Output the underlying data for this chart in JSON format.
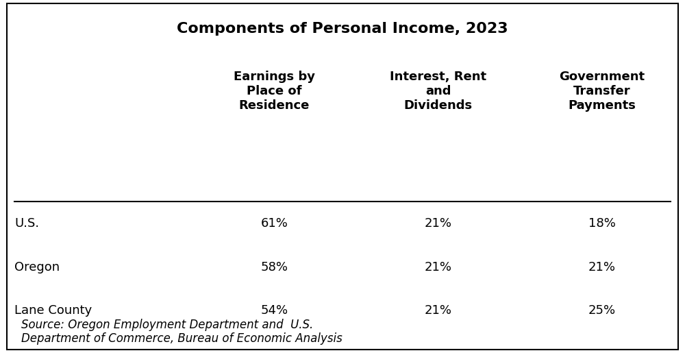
{
  "title": "Components of Personal Income, 2023",
  "col_headers": [
    "Earnings by\nPlace of\nResidence",
    "Interest, Rent\nand\nDividends",
    "Government\nTransfer\nPayments"
  ],
  "row_labels": [
    "U.S.",
    "Oregon",
    "Lane County"
  ],
  "table_data": [
    [
      "61%",
      "21%",
      "18%"
    ],
    [
      "58%",
      "21%",
      "21%"
    ],
    [
      "54%",
      "21%",
      "25%"
    ]
  ],
  "source_text": "Source: Oregon Employment Department and  U.S.\nDepartment of Commerce, Bureau of Economic Analysis",
  "bg_color": "#ffffff",
  "border_color": "#000000",
  "title_fontsize": 16,
  "header_fontsize": 13,
  "data_fontsize": 13,
  "row_label_fontsize": 13,
  "source_fontsize": 12
}
